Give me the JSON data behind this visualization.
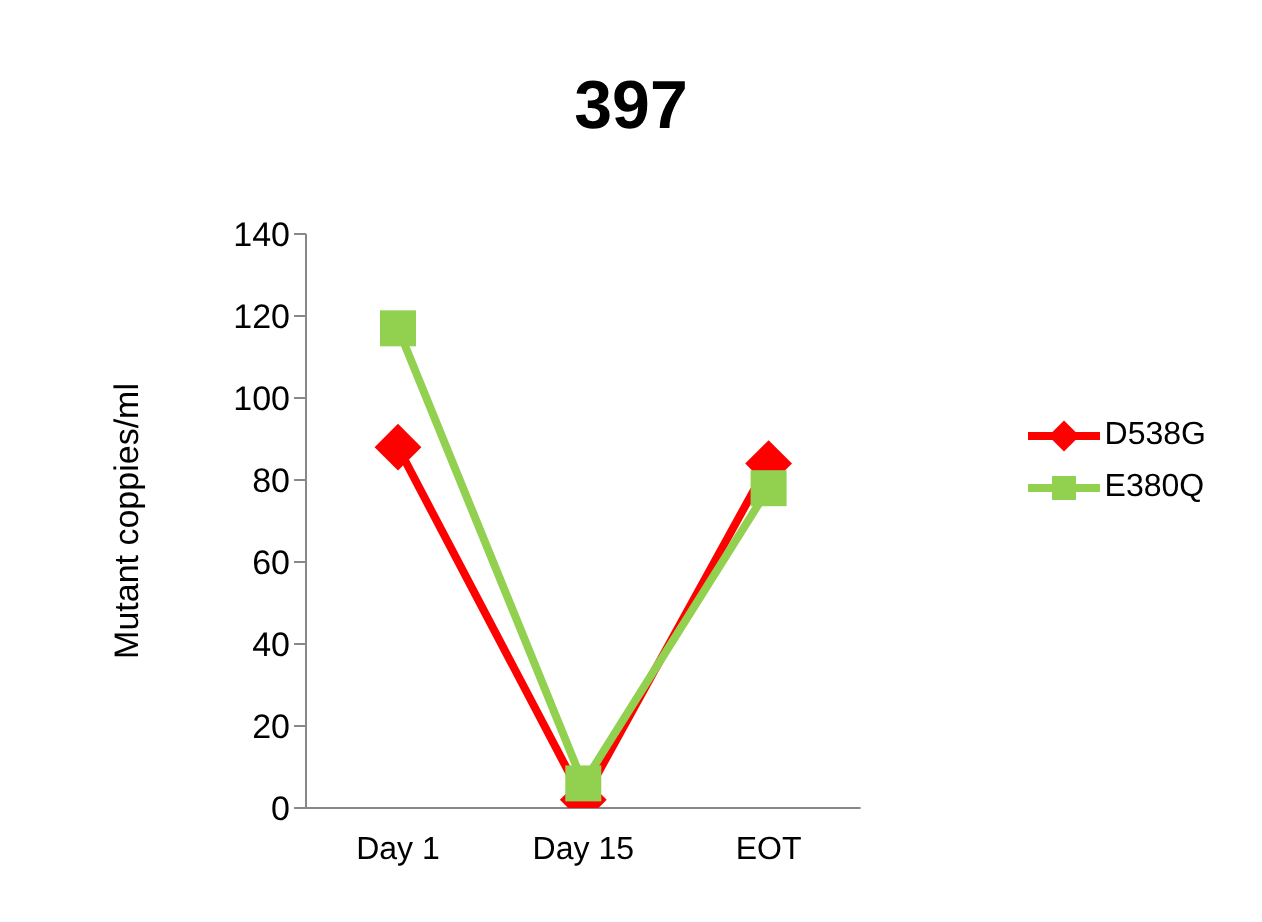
{
  "chart_data": {
    "type": "line",
    "title": "397",
    "ylabel": "Mutant coppies/ml",
    "categories": [
      "Day 1",
      "Day 15",
      "EOT"
    ],
    "series": [
      {
        "name": "D538G",
        "color": "#ff0000",
        "marker": "diamond",
        "values": [
          88,
          2,
          84
        ]
      },
      {
        "name": "E380Q",
        "color": "#92d050",
        "marker": "square",
        "values": [
          117,
          6,
          78
        ]
      }
    ],
    "ylim": [
      0,
      140
    ],
    "yticks": [
      0,
      20,
      40,
      60,
      80,
      100,
      120,
      140
    ],
    "grid": false,
    "legend": "right"
  }
}
